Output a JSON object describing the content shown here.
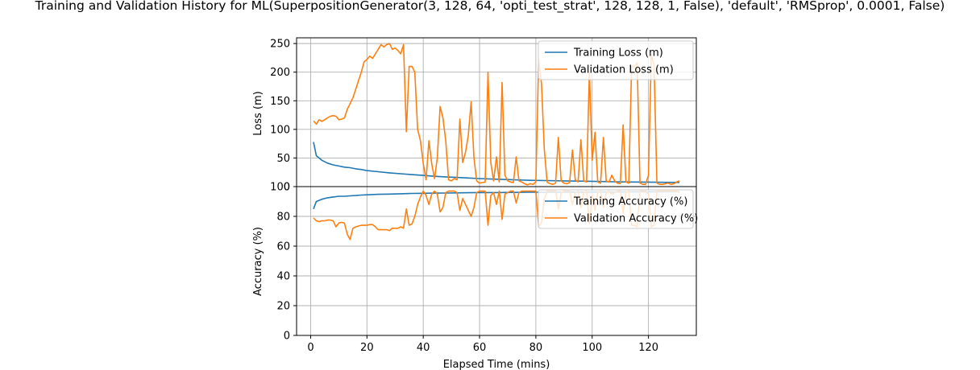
{
  "chart_data": {
    "type": "line",
    "title": "Training and Validation History for ML(SuperpositionGenerator(3, 128, 64, 'opti_test_strat', 128, 128, 1, False), 'default', 'RMSprop', 0.0001, False)",
    "xlabel": "Elapsed Time (mins)",
    "x_ticks": [
      0,
      20,
      40,
      60,
      80,
      100,
      120
    ],
    "xlim": [
      -5,
      137
    ],
    "grid": true,
    "panels": [
      {
        "ylabel": "Loss (m)",
        "ylim": [
          0,
          260
        ],
        "y_ticks": [
          0,
          50,
          100,
          150,
          200,
          250
        ],
        "legend_position": "top-right",
        "series": [
          {
            "name": "Training Loss (m)",
            "color": "#1f77b4",
            "x": [
              1,
              2,
              4,
              6,
              8,
              10,
              12,
              14,
              16,
              18,
              20,
              24,
              28,
              32,
              36,
              40,
              44,
              48,
              52,
              56,
              60,
              66,
              72,
              78,
              84,
              90,
              96,
              102,
              108,
              114,
              120,
              126,
              131
            ],
            "y": [
              78,
              54,
              46,
              41,
              38,
              36,
              34,
              33,
              31,
              30,
              28,
              26,
              24,
              22.5,
              21,
              19.5,
              18,
              17,
              16,
              15,
              14,
              13,
              12,
              11,
              10.5,
              10,
              9.5,
              9,
              8.5,
              8,
              7.8,
              7.5,
              7.3
            ]
          },
          {
            "name": "Validation Loss (m)",
            "color": "#ff7f0e",
            "x": [
              1,
              2,
              3,
              4,
              5,
              6,
              7,
              8,
              9,
              10,
              11,
              12,
              13,
              14,
              15,
              16,
              17,
              18,
              19,
              20,
              21,
              22,
              23,
              24,
              25,
              26,
              27,
              28,
              29,
              30,
              31,
              32,
              33,
              34,
              35,
              36,
              37,
              38,
              39,
              40,
              41,
              42,
              43,
              44,
              45,
              46,
              47,
              48,
              49,
              50,
              51,
              52,
              53,
              54,
              55,
              56,
              57,
              58,
              59,
              60,
              61,
              62,
              63,
              64,
              65,
              66,
              67,
              68,
              69,
              70,
              71,
              72,
              73,
              74,
              75,
              76,
              77,
              78,
              79,
              80,
              81,
              82,
              83,
              84,
              85,
              86,
              87,
              88,
              89,
              90,
              91,
              92,
              93,
              94,
              95,
              96,
              97,
              98,
              99,
              100,
              101,
              102,
              103,
              104,
              105,
              106,
              107,
              108,
              109,
              110,
              111,
              112,
              113,
              114,
              115,
              116,
              117,
              118,
              119,
              120,
              121,
              122,
              123,
              124,
              125,
              126,
              127,
              128,
              129,
              130,
              131
            ],
            "y": [
              115,
              109,
              117,
              114,
              117,
              120,
              123,
              124,
              123,
              117,
              118,
              120,
              135,
              145,
              155,
              170,
              185,
              200,
              218,
              222,
              228,
              224,
              232,
              240,
              248,
              244,
              248,
              250,
              240,
              242,
              238,
              232,
              248,
              96,
              210,
              210,
              200,
              100,
              80,
              40,
              12,
              80,
              40,
              14,
              50,
              140,
              120,
              80,
              12,
              10,
              14,
              12,
              118,
              42,
              60,
              90,
              148,
              50,
              10,
              6,
              7,
              8,
              200,
              42,
              10,
              52,
              8,
              182,
              20,
              10,
              8,
              7,
              52,
              10,
              8,
              5,
              3,
              5,
              4,
              8,
              222,
              180,
              65,
              8,
              5,
              4,
              6,
              86,
              10,
              6,
              5,
              7,
              64,
              12,
              8,
              82,
              10,
              8,
              200,
              46,
              95,
              8,
              6,
              86,
              10,
              8,
              20,
              10,
              6,
              5,
              108,
              8,
              6,
              210,
              210,
              216,
              6,
              4,
              4,
              20,
              230,
              212,
              6,
              4,
              4,
              5,
              6,
              4,
              5,
              8,
              10
            ]
          }
        ]
      },
      {
        "ylabel": "Accuracy (%)",
        "ylim": [
          0,
          100
        ],
        "y_ticks": [
          0,
          20,
          40,
          60,
          80,
          100
        ],
        "legend_position": "top-right",
        "series": [
          {
            "name": "Training Accuracy (%)",
            "color": "#1f77b4",
            "x": [
              1,
              2,
              4,
              6,
              8,
              10,
              12,
              14,
              16,
              18,
              20,
              24,
              28,
              32,
              36,
              40,
              44,
              48,
              52,
              56,
              60,
              66,
              72,
              78,
              84,
              90,
              96,
              102,
              108,
              114,
              120,
              126,
              131
            ],
            "y": [
              85,
              90,
              91.5,
              92.5,
              93,
              93.5,
              93.5,
              93.8,
              94,
              94.3,
              94.5,
              94.8,
              95,
              95.2,
              95.4,
              95.5,
              95.6,
              95.7,
              95.8,
              95.9,
              96,
              96,
              96.1,
              96.2,
              96.2,
              96.3,
              96.3,
              96.4,
              96.4,
              96.5,
              96.5,
              96.5,
              96.6
            ]
          },
          {
            "name": "Validation Accuracy (%)",
            "color": "#ff7f0e",
            "x": [
              1,
              2,
              3,
              4,
              5,
              6,
              7,
              8,
              9,
              10,
              11,
              12,
              13,
              14,
              15,
              16,
              17,
              18,
              19,
              20,
              21,
              22,
              23,
              24,
              25,
              26,
              27,
              28,
              29,
              30,
              31,
              32,
              33,
              34,
              35,
              36,
              37,
              38,
              39,
              40,
              41,
              42,
              43,
              44,
              45,
              46,
              47,
              48,
              49,
              50,
              51,
              52,
              53,
              54,
              55,
              56,
              57,
              58,
              59,
              60,
              61,
              62,
              63,
              64,
              65,
              66,
              67,
              68,
              69,
              70,
              71,
              72,
              73,
              74,
              75,
              76,
              77,
              78,
              79,
              80,
              81,
              82,
              83,
              84,
              85,
              86,
              87,
              88,
              89,
              90,
              91,
              92,
              93,
              94,
              95,
              96,
              97,
              98,
              99,
              100,
              101,
              102,
              103,
              104,
              105,
              106,
              107,
              108,
              109,
              110,
              111,
              112,
              113,
              114,
              115,
              116,
              117,
              118,
              119,
              120,
              121,
              122,
              123,
              124,
              125,
              126,
              127,
              128,
              129,
              130,
              131
            ],
            "y": [
              79,
              77,
              76.5,
              77,
              77,
              77.5,
              77.5,
              77,
              73,
              75.5,
              76,
              75.5,
              68,
              64.5,
              72,
              73,
              73.5,
              74,
              74,
              74,
              74.5,
              74.5,
              73,
              71,
              71,
              71,
              71,
              70.5,
              72,
              72,
              72,
              73,
              72,
              85,
              74,
              75,
              80,
              88,
              93,
              97,
              94,
              88,
              95,
              97,
              95,
              83,
              86,
              96,
              97,
              97,
              97,
              96,
              84,
              92,
              88,
              84,
              80,
              86,
              96,
              97,
              97,
              97,
              74,
              94,
              96,
              88,
              97,
              78,
              95,
              96,
              97,
              97,
              89,
              96,
              97,
              97,
              97,
              97,
              97,
              97,
              73,
              76,
              92,
              97,
              97,
              97,
              97,
              85,
              96,
              97,
              97,
              97,
              88,
              96,
              97,
              86,
              96,
              97,
              75,
              94,
              84,
              96,
              97,
              86,
              96,
              97,
              95,
              96,
              97,
              97,
              82,
              96,
              97,
              74,
              74,
              73,
              97,
              97,
              97,
              95,
              73,
              74,
              97,
              97,
              97,
              97,
              97,
              97,
              97,
              97,
              96
            ]
          }
        ]
      }
    ]
  }
}
